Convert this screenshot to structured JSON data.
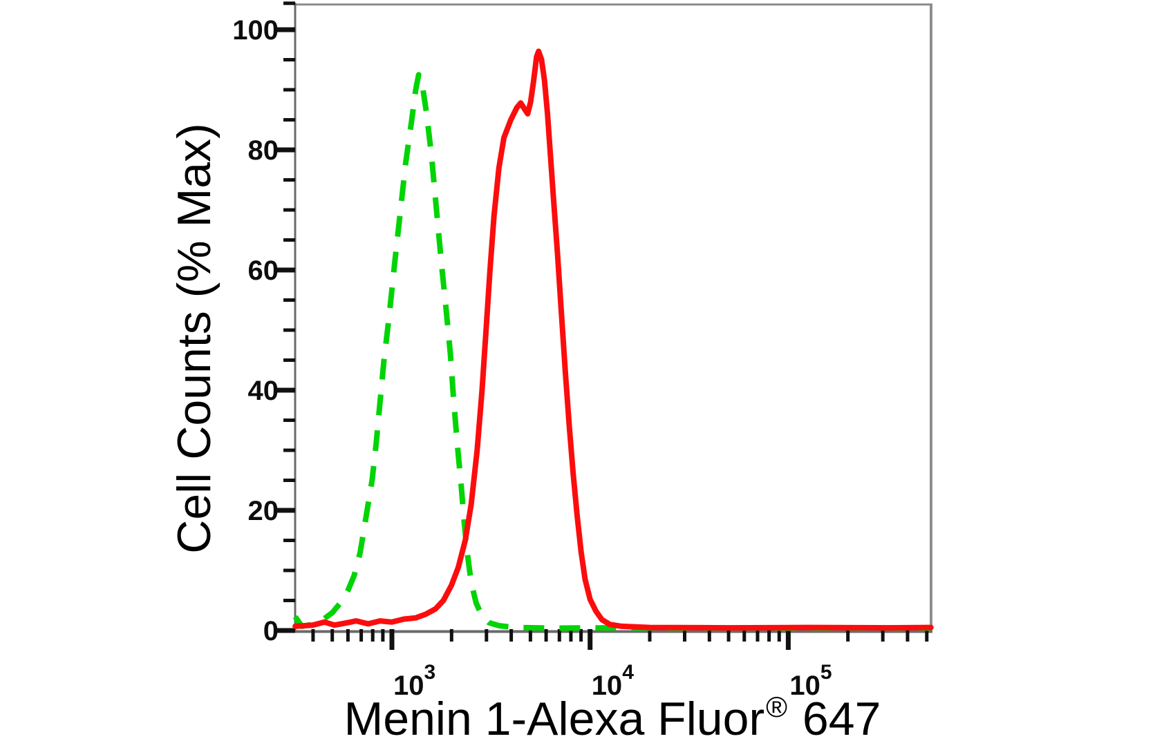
{
  "figure": {
    "background_color": "#ffffff",
    "frame_color": "#8e8e8e",
    "axis_line_color": "#6a6a6a",
    "tick_color": "#111111"
  },
  "axes": {
    "y_title": "Cell Counts (% Max)",
    "x_title_main": "Menin 1-Alexa Fluor",
    "x_title_sup": "®",
    "x_title_suffix": " 647",
    "y_tick_labels": [
      "0",
      "20",
      "40",
      "60",
      "80",
      "100"
    ],
    "x_tick_base": "10",
    "x_tick_exponents": [
      "3",
      "4",
      "5"
    ]
  },
  "chart_data": {
    "type": "line",
    "subtype": "flow-cytometry-histogram-overlay",
    "title": "",
    "xlabel": "Menin 1-Alexa Fluor® 647",
    "ylabel": "Cell Counts (% Max)",
    "x_scale": "log10",
    "x_range": [
      330,
      530000
    ],
    "x_range_log10": [
      2.512,
      5.72
    ],
    "ylim": [
      0,
      104
    ],
    "grid": false,
    "legend": "none",
    "y_major_ticks_pct": [
      0,
      20,
      40,
      60,
      80,
      100
    ],
    "y_minor_ticks_pct": [
      5,
      10,
      15,
      25,
      30,
      35,
      45,
      50,
      55,
      65,
      70,
      75,
      85,
      90,
      95,
      104.4
    ],
    "x_major_ticks": [
      1000,
      10000,
      100000
    ],
    "x_minor_ticks": [
      400,
      500,
      600,
      700,
      800,
      900,
      2000,
      3000,
      4000,
      5000,
      6000,
      7000,
      8000,
      9000,
      20000,
      30000,
      40000,
      50000,
      60000,
      70000,
      80000,
      90000,
      200000,
      300000,
      400000,
      500000
    ],
    "series": [
      {
        "name": "green dashed curve",
        "line_style": "dashed",
        "color": "#00d405",
        "peak": {
          "x_approx": 1360,
          "pct_max": 92.5
        },
        "points_log10x_pct": [
          [
            2.512,
            2.3
          ],
          [
            2.545,
            0.7
          ],
          [
            2.58,
            0.9
          ],
          [
            2.62,
            1.3
          ],
          [
            2.66,
            2.0
          ],
          [
            2.7,
            3.0
          ],
          [
            2.74,
            4.6
          ],
          [
            2.78,
            6.8
          ],
          [
            2.81,
            9.2
          ],
          [
            2.84,
            13
          ],
          [
            2.87,
            19
          ],
          [
            2.9,
            25
          ],
          [
            2.92,
            31
          ],
          [
            2.94,
            38
          ],
          [
            2.96,
            45
          ],
          [
            2.985,
            52
          ],
          [
            3.01,
            60
          ],
          [
            3.04,
            69
          ],
          [
            3.07,
            78
          ],
          [
            3.1,
            85
          ],
          [
            3.12,
            90
          ],
          [
            3.135,
            92.5
          ],
          [
            3.155,
            90.5
          ],
          [
            3.175,
            86
          ],
          [
            3.2,
            79
          ],
          [
            3.225,
            70
          ],
          [
            3.25,
            61
          ],
          [
            3.275,
            53
          ],
          [
            3.295,
            46
          ],
          [
            3.31,
            39
          ],
          [
            3.33,
            31
          ],
          [
            3.35,
            24
          ],
          [
            3.365,
            18
          ],
          [
            3.38,
            13
          ],
          [
            3.4,
            8
          ],
          [
            3.425,
            4.6
          ],
          [
            3.455,
            2.4
          ],
          [
            3.49,
            1.3
          ],
          [
            3.54,
            0.8
          ],
          [
            3.62,
            0.5
          ],
          [
            3.8,
            0.4
          ],
          [
            4.1,
            0.45
          ],
          [
            4.4,
            0.4
          ],
          [
            4.7,
            0.45
          ],
          [
            5.0,
            0.4
          ],
          [
            5.3,
            0.45
          ],
          [
            5.72,
            0.4
          ]
        ]
      },
      {
        "name": "red solid curve",
        "line_style": "solid",
        "color": "#fb0d0d",
        "peak": {
          "x_approx": 5500,
          "pct_max": 96.4
        },
        "shoulder": {
          "x_approx": 4470,
          "pct_max": 87.8
        },
        "points_log10x_pct": [
          [
            2.512,
            0.7
          ],
          [
            2.6,
            0.9
          ],
          [
            2.66,
            1.4
          ],
          [
            2.71,
            0.9
          ],
          [
            2.76,
            1.2
          ],
          [
            2.82,
            1.6
          ],
          [
            2.88,
            1.1
          ],
          [
            2.94,
            1.6
          ],
          [
            3.0,
            1.4
          ],
          [
            3.06,
            1.9
          ],
          [
            3.12,
            2.1
          ],
          [
            3.17,
            2.7
          ],
          [
            3.22,
            3.6
          ],
          [
            3.26,
            5.0
          ],
          [
            3.3,
            7.5
          ],
          [
            3.335,
            10.5
          ],
          [
            3.37,
            15
          ],
          [
            3.4,
            21
          ],
          [
            3.43,
            30
          ],
          [
            3.455,
            40
          ],
          [
            3.475,
            50
          ],
          [
            3.495,
            60
          ],
          [
            3.515,
            69
          ],
          [
            3.54,
            77
          ],
          [
            3.565,
            82
          ],
          [
            3.6,
            85
          ],
          [
            3.63,
            87
          ],
          [
            3.65,
            87.8
          ],
          [
            3.665,
            87
          ],
          [
            3.685,
            86
          ],
          [
            3.7,
            88
          ],
          [
            3.715,
            91.5
          ],
          [
            3.73,
            95.5
          ],
          [
            3.74,
            96.4
          ],
          [
            3.755,
            95
          ],
          [
            3.77,
            91.5
          ],
          [
            3.785,
            86
          ],
          [
            3.8,
            79
          ],
          [
            3.815,
            72
          ],
          [
            3.835,
            63
          ],
          [
            3.855,
            53
          ],
          [
            3.875,
            43
          ],
          [
            3.895,
            34
          ],
          [
            3.915,
            26
          ],
          [
            3.935,
            19
          ],
          [
            3.955,
            13
          ],
          [
            3.975,
            8.5
          ],
          [
            4.0,
            5.2
          ],
          [
            4.03,
            3.2
          ],
          [
            4.06,
            1.8
          ],
          [
            4.1,
            1.0
          ],
          [
            4.16,
            0.7
          ],
          [
            4.3,
            0.5
          ],
          [
            4.7,
            0.45
          ],
          [
            5.1,
            0.5
          ],
          [
            5.5,
            0.45
          ],
          [
            5.72,
            0.5
          ]
        ]
      }
    ]
  }
}
